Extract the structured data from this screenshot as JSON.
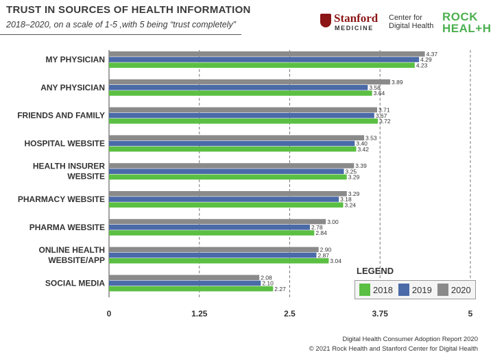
{
  "header": {
    "title": "TRUST IN SOURCES OF HEALTH INFORMATION",
    "subtitle": "2018–2020, on a scale of 1-5 ,with 5 being “trust completely”"
  },
  "logos": {
    "stanford_word": "Stanford",
    "stanford_sub": "MEDICINE",
    "center_line1": "Center for",
    "center_line2": "Digital Health",
    "rock_line1": "ROCK",
    "rock_line2": "HEAL+H"
  },
  "legend": {
    "title": "LEGEND",
    "items": [
      "2018",
      "2019",
      "2020"
    ]
  },
  "footer": {
    "line1": "Digital Health Consumer Adoption Report 2020",
    "line2": "© 2021 Rock Health and Stanford Center for Digital Health"
  },
  "colors": {
    "2018": "#5bbf43",
    "2019": "#4a6aa8",
    "2020": "#8a8a8a"
  },
  "chart_data": {
    "type": "bar",
    "orientation": "horizontal",
    "title": "TRUST IN SOURCES OF HEALTH INFORMATION",
    "categories": [
      [
        "MY PHYSICIAN"
      ],
      [
        "ANY PHYSICIAN"
      ],
      [
        "FRIENDS AND FAMILY"
      ],
      [
        "HOSPITAL WEBSITE"
      ],
      [
        "HEALTH INSURER",
        "WEBSITE"
      ],
      [
        "PHARMACY WEBSITE"
      ],
      [
        "PHARMA WEBSITE"
      ],
      [
        "ONLINE HEALTH",
        "WEBSITE/APP"
      ],
      [
        "SOCIAL MEDIA"
      ]
    ],
    "series": [
      {
        "name": "2020",
        "values": [
          4.37,
          3.89,
          3.71,
          3.53,
          3.39,
          3.29,
          3.0,
          2.9,
          2.08
        ],
        "labels": [
          "4.37",
          "3.89",
          "3.71",
          "3.53",
          "3.39",
          "3.29",
          "3.00",
          "2.90",
          "2.08"
        ]
      },
      {
        "name": "2019",
        "values": [
          4.29,
          3.58,
          3.67,
          3.4,
          3.25,
          3.18,
          2.78,
          2.87,
          2.1
        ],
        "labels": [
          "4.29",
          "3.58",
          "3.67",
          "3.40",
          "3.25",
          "3.18",
          "2.78",
          "2.87",
          "2.10"
        ]
      },
      {
        "name": "2018",
        "values": [
          4.23,
          3.64,
          3.72,
          3.42,
          3.29,
          3.24,
          2.84,
          3.04,
          2.27
        ],
        "labels": [
          "4.23",
          "3.64",
          "3.72",
          "3.42",
          "3.29",
          "3.24",
          "2.84",
          "3.04",
          "2.27"
        ]
      }
    ],
    "xlim": [
      0,
      5
    ],
    "xticks": [
      0,
      1.25,
      2.5,
      3.75,
      5
    ],
    "xtick_labels": [
      "0",
      "1.25",
      "2.5",
      "3.75",
      "5"
    ],
    "grid": "vertical-dashed",
    "legend_position": "bottom-right"
  }
}
